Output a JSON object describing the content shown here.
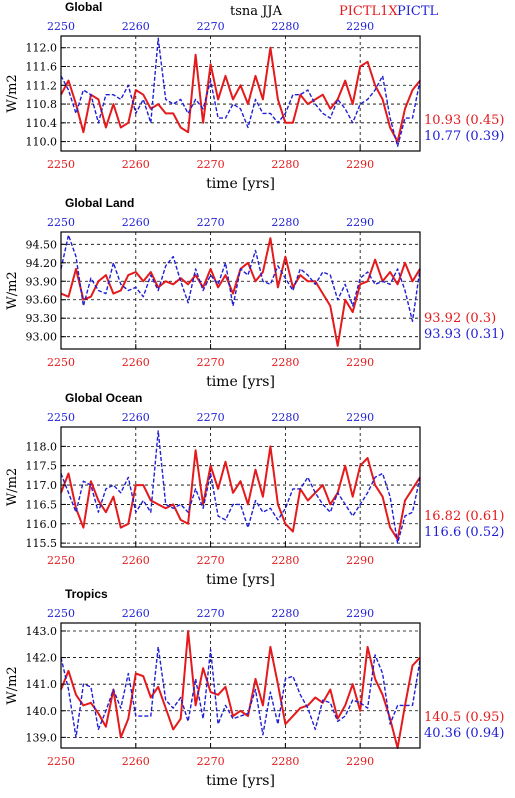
{
  "header": {
    "title": "tsna JJA",
    "legend_red": "PICTL1X",
    "legend_blue": "PICTL",
    "colors": {
      "red": "#e41a1c",
      "blue": "#1f1fd6"
    }
  },
  "chart_data": [
    {
      "type": "line",
      "title": "Global",
      "xlabel": "time [yrs]",
      "ylabel": "W/m2",
      "xlim": [
        2250,
        2298
      ],
      "ylim": [
        109.8,
        112.25
      ],
      "xticks": [
        2250,
        2260,
        2270,
        2280,
        2290
      ],
      "top_xticks": [
        2250,
        2260,
        2270,
        2280,
        2290
      ],
      "yticks": [
        "110.0",
        "110.4",
        "110.8",
        "111.2",
        "111.6",
        "112.0"
      ],
      "yticks_val": [
        110.0,
        110.4,
        110.8,
        111.2,
        111.6,
        112.0
      ],
      "grid": true,
      "x": [
        2250,
        2251,
        2252,
        2253,
        2254,
        2255,
        2256,
        2257,
        2258,
        2259,
        2260,
        2261,
        2262,
        2263,
        2264,
        2265,
        2266,
        2267,
        2268,
        2269,
        2270,
        2271,
        2272,
        2273,
        2274,
        2275,
        2276,
        2277,
        2278,
        2279,
        2280,
        2281,
        2282,
        2283,
        2284,
        2285,
        2286,
        2287,
        2288,
        2289,
        2290,
        2291,
        2292,
        2293,
        2294,
        2295,
        2296,
        2297,
        2298
      ],
      "series": [
        {
          "name": "PICTL1X",
          "stats": "10.93 (0.45)",
          "color": "#e41a1c",
          "style": "solid",
          "values": [
            111.0,
            111.3,
            110.8,
            110.2,
            111.0,
            110.9,
            110.3,
            110.8,
            110.3,
            110.4,
            111.1,
            111.0,
            110.7,
            110.8,
            110.6,
            110.6,
            110.3,
            110.2,
            111.85,
            110.4,
            111.65,
            110.9,
            111.4,
            110.9,
            111.2,
            110.8,
            111.4,
            110.9,
            112.0,
            110.9,
            110.4,
            110.4,
            111.0,
            110.8,
            110.9,
            111.0,
            110.7,
            110.9,
            111.3,
            110.8,
            111.6,
            111.7,
            111.2,
            110.9,
            110.3,
            110.0,
            110.7,
            111.1,
            111.3
          ]
        },
        {
          "name": "PICTL",
          "stats": "10.77 (0.39)",
          "color": "#1f1fd6",
          "style": "dashed",
          "values": [
            111.4,
            111.1,
            110.6,
            111.1,
            111.0,
            110.4,
            111.0,
            111.0,
            110.9,
            111.2,
            110.6,
            110.9,
            110.4,
            112.2,
            110.9,
            110.8,
            110.9,
            110.6,
            110.9,
            110.7,
            111.3,
            110.5,
            110.5,
            110.8,
            110.7,
            110.3,
            110.9,
            110.6,
            110.6,
            110.4,
            110.6,
            111.0,
            111.0,
            111.1,
            110.8,
            110.6,
            110.5,
            110.9,
            110.7,
            110.4,
            110.8,
            110.9,
            111.1,
            111.4,
            110.5,
            109.9,
            110.5,
            110.5,
            111.3
          ]
        }
      ]
    },
    {
      "type": "line",
      "title": "Global Land",
      "xlabel": "time [yrs]",
      "ylabel": "W/m2",
      "xlim": [
        2250,
        2298
      ],
      "ylim": [
        92.8,
        94.7
      ],
      "xticks": [
        2250,
        2260,
        2270,
        2280,
        2290
      ],
      "top_xticks": [
        2250,
        2260,
        2270,
        2280,
        2290
      ],
      "yticks": [
        "93.00",
        "93.30",
        "93.60",
        "93.90",
        "94.20",
        "94.50"
      ],
      "yticks_val": [
        93.0,
        93.3,
        93.6,
        93.9,
        94.2,
        94.5
      ],
      "grid": true,
      "x": [
        2250,
        2251,
        2252,
        2253,
        2254,
        2255,
        2256,
        2257,
        2258,
        2259,
        2260,
        2261,
        2262,
        2263,
        2264,
        2265,
        2266,
        2267,
        2268,
        2269,
        2270,
        2271,
        2272,
        2273,
        2274,
        2275,
        2276,
        2277,
        2278,
        2279,
        2280,
        2281,
        2282,
        2283,
        2284,
        2285,
        2286,
        2287,
        2288,
        2289,
        2290,
        2291,
        2292,
        2293,
        2294,
        2295,
        2296,
        2297,
        2298
      ],
      "series": [
        {
          "name": "PICTL1X",
          "stats": "93.92 (0.3)",
          "color": "#e41a1c",
          "style": "solid",
          "values": [
            93.7,
            93.65,
            94.1,
            93.6,
            93.65,
            93.9,
            94.0,
            93.7,
            93.75,
            94.0,
            94.05,
            93.9,
            94.05,
            93.8,
            93.9,
            93.85,
            93.95,
            93.85,
            94.0,
            93.8,
            94.1,
            93.8,
            94.0,
            93.7,
            94.1,
            94.2,
            93.9,
            94.05,
            94.6,
            93.8,
            94.3,
            93.8,
            94.0,
            93.9,
            93.9,
            93.7,
            93.5,
            92.85,
            93.6,
            93.4,
            93.85,
            93.9,
            94.25,
            93.9,
            94.05,
            93.85,
            94.2,
            93.9,
            94.1
          ]
        },
        {
          "name": "PICTL",
          "stats": "93.93 (0.31)",
          "color": "#1f1fd6",
          "style": "dashed",
          "values": [
            94.1,
            94.65,
            94.3,
            93.5,
            93.95,
            93.75,
            93.7,
            94.2,
            93.85,
            93.75,
            93.8,
            93.65,
            94.0,
            93.75,
            94.15,
            94.3,
            93.9,
            93.55,
            94.1,
            93.75,
            94.0,
            93.85,
            94.2,
            93.5,
            94.1,
            94.0,
            94.4,
            93.9,
            93.85,
            94.15,
            93.95,
            93.75,
            94.1,
            94.0,
            93.85,
            94.05,
            94.0,
            93.6,
            93.85,
            93.5,
            93.95,
            94.05,
            93.85,
            93.9,
            93.85,
            94.1,
            93.75,
            93.25,
            94.1
          ]
        }
      ]
    },
    {
      "type": "line",
      "title": "Global Ocean",
      "xlabel": "time [yrs]",
      "ylabel": "W/m2",
      "xlim": [
        2250,
        2298
      ],
      "ylim": [
        115.4,
        118.5
      ],
      "xticks": [
        2250,
        2260,
        2270,
        2280,
        2290
      ],
      "top_xticks": [
        2250,
        2260,
        2270,
        2280,
        2290
      ],
      "yticks": [
        "115.5",
        "116.0",
        "116.5",
        "117.0",
        "117.5",
        "118.0"
      ],
      "yticks_val": [
        115.5,
        116.0,
        116.5,
        117.0,
        117.5,
        118.0
      ],
      "grid": true,
      "x": [
        2250,
        2251,
        2252,
        2253,
        2254,
        2255,
        2256,
        2257,
        2258,
        2259,
        2260,
        2261,
        2262,
        2263,
        2264,
        2265,
        2266,
        2267,
        2268,
        2269,
        2270,
        2271,
        2272,
        2273,
        2274,
        2275,
        2276,
        2277,
        2278,
        2279,
        2280,
        2281,
        2282,
        2283,
        2284,
        2285,
        2286,
        2287,
        2288,
        2289,
        2290,
        2291,
        2292,
        2293,
        2294,
        2295,
        2296,
        2297,
        2298
      ],
      "series": [
        {
          "name": "PICTL1X",
          "stats": "16.82 (0.61)",
          "color": "#e41a1c",
          "style": "solid",
          "values": [
            116.8,
            117.3,
            116.4,
            115.9,
            117.1,
            116.6,
            116.3,
            116.7,
            115.9,
            116.0,
            117.0,
            117.0,
            116.6,
            116.5,
            116.4,
            116.5,
            116.1,
            116.0,
            117.9,
            116.5,
            117.5,
            116.9,
            117.6,
            116.8,
            117.1,
            116.5,
            117.4,
            116.7,
            118.0,
            116.5,
            116.0,
            115.8,
            116.9,
            116.6,
            116.8,
            117.0,
            116.5,
            116.8,
            117.5,
            116.7,
            117.5,
            117.7,
            117.0,
            116.7,
            115.9,
            115.6,
            116.6,
            116.9,
            117.2
          ]
        },
        {
          "name": "PICTL",
          "stats": "116.6 (0.52)",
          "color": "#1f1fd6",
          "style": "dashed",
          "values": [
            117.3,
            116.8,
            116.3,
            117.1,
            117.0,
            116.3,
            116.9,
            117.0,
            116.8,
            117.2,
            116.3,
            116.6,
            116.3,
            118.4,
            116.5,
            116.4,
            116.5,
            116.3,
            116.9,
            116.4,
            117.3,
            116.2,
            116.1,
            116.5,
            116.5,
            115.9,
            116.6,
            116.3,
            116.4,
            116.1,
            116.4,
            116.9,
            116.9,
            117.2,
            116.8,
            116.5,
            116.3,
            116.8,
            116.5,
            116.2,
            116.5,
            116.8,
            117.2,
            117.3,
            116.7,
            115.5,
            116.2,
            116.3,
            117.2
          ]
        }
      ]
    },
    {
      "type": "line",
      "title": "Tropics",
      "xlabel": "time [yrs]",
      "ylabel": "W/m2",
      "xlim": [
        2250,
        2298
      ],
      "ylim": [
        138.6,
        143.3
      ],
      "xticks": [
        2250,
        2260,
        2270,
        2280,
        2290
      ],
      "top_xticks": [
        2250,
        2260,
        2270,
        2280,
        2290
      ],
      "yticks": [
        "139.0",
        "140.0",
        "141.0",
        "142.0",
        "143.0"
      ],
      "yticks_val": [
        139.0,
        140.0,
        141.0,
        142.0,
        143.0
      ],
      "grid": true,
      "x": [
        2250,
        2251,
        2252,
        2253,
        2254,
        2255,
        2256,
        2257,
        2258,
        2259,
        2260,
        2261,
        2262,
        2263,
        2264,
        2265,
        2266,
        2267,
        2268,
        2269,
        2270,
        2271,
        2272,
        2273,
        2274,
        2275,
        2276,
        2277,
        2278,
        2279,
        2280,
        2281,
        2282,
        2283,
        2284,
        2285,
        2286,
        2287,
        2288,
        2289,
        2290,
        2291,
        2292,
        2293,
        2294,
        2295,
        2296,
        2297,
        2298
      ],
      "series": [
        {
          "name": "PICTL1X",
          "stats": "140.5 (0.95)",
          "color": "#e41a1c",
          "style": "solid",
          "values": [
            140.8,
            141.5,
            140.6,
            140.2,
            140.3,
            139.9,
            139.4,
            140.8,
            139.0,
            139.7,
            141.4,
            141.3,
            140.5,
            140.9,
            140.1,
            139.3,
            139.7,
            143.0,
            140.2,
            141.6,
            140.7,
            140.6,
            140.9,
            139.8,
            140.0,
            139.8,
            141.2,
            140.2,
            142.4,
            141.0,
            139.5,
            139.8,
            140.1,
            140.2,
            140.5,
            140.3,
            140.8,
            139.7,
            140.2,
            141.0,
            140.0,
            142.4,
            141.2,
            140.6,
            139.7,
            138.6,
            140.2,
            141.7,
            142.0
          ]
        },
        {
          "name": "PICTL",
          "stats": "40.36 (0.94)",
          "color": "#1f1fd6",
          "style": "dashed",
          "values": [
            142.0,
            140.8,
            139.0,
            141.0,
            140.9,
            139.3,
            140.0,
            140.8,
            140.1,
            141.4,
            139.8,
            139.8,
            139.8,
            142.4,
            140.4,
            140.1,
            140.5,
            139.6,
            141.2,
            139.7,
            142.3,
            139.5,
            140.2,
            139.7,
            139.8,
            139.9,
            140.8,
            139.1,
            140.7,
            139.5,
            141.2,
            141.3,
            140.6,
            140.1,
            139.3,
            140.4,
            140.3,
            139.6,
            139.8,
            140.4,
            140.3,
            140.1,
            142.1,
            141.4,
            139.5,
            140.2,
            140.2,
            140.2,
            141.9
          ]
        }
      ]
    }
  ]
}
